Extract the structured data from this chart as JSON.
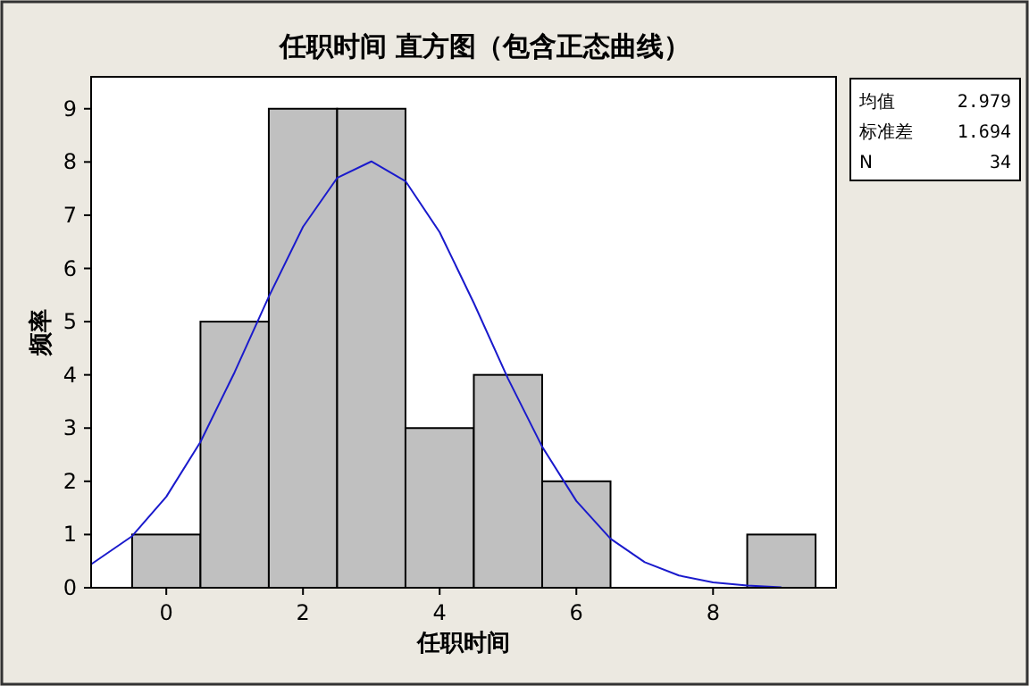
{
  "chart_data": {
    "type": "histogram",
    "title": "任职时间 直方图（包含正态曲线）",
    "xlabel": "任职时间",
    "ylabel": "频率",
    "bins": [
      -0.5,
      0.5,
      1.5,
      2.5,
      3.5,
      4.5,
      5.5,
      6.5,
      7.5,
      8.5,
      9.5
    ],
    "values": [
      1,
      5,
      9,
      9,
      3,
      4,
      2,
      0,
      0,
      1
    ],
    "color": "#c0c0c0",
    "series": [
      {
        "type": "line",
        "color": "#1a1acc",
        "x": [
          -1.1,
          -0.5,
          0,
          0.5,
          1,
          1.5,
          2,
          2.5,
          3,
          3.5,
          4,
          4.5,
          5,
          5.5,
          6,
          6.5,
          7,
          7.5,
          8,
          8.5,
          9
        ],
        "values": [
          0.44,
          0.97,
          1.71,
          2.74,
          4.05,
          5.47,
          6.78,
          7.7,
          8.01,
          7.64,
          6.68,
          5.35,
          3.93,
          2.65,
          1.63,
          0.92,
          0.48,
          0.23,
          0.1,
          0.04,
          0.01
        ]
      }
    ],
    "xlim": [
      -1.1,
      9.8
    ],
    "ylim": [
      0,
      9.6
    ],
    "xticks": [
      0,
      2,
      4,
      6,
      8
    ],
    "yticks": [
      0,
      1,
      2,
      3,
      4,
      5,
      6,
      7,
      8,
      9
    ],
    "annotations": [
      "均值 2.979",
      "标准差 1.694",
      "N 34"
    ],
    "grid": false
  }
}
